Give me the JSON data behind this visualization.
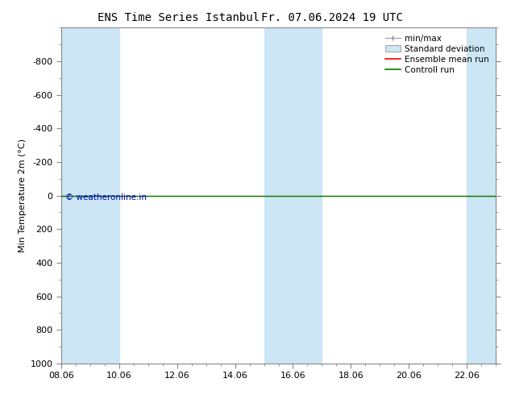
{
  "title_left": "ENS Time Series Istanbul",
  "title_right": "Fr. 07.06.2024 19 UTC",
  "ylabel": "Min Temperature 2m (°C)",
  "xlim_labels": [
    "08.06",
    "10.06",
    "12.06",
    "14.06",
    "16.06",
    "18.06",
    "20.06",
    "22.06"
  ],
  "xlim": [
    0,
    15.0
  ],
  "ylim_top": -1000,
  "ylim_bottom": 1000,
  "yticks": [
    -800,
    -600,
    -400,
    -200,
    0,
    200,
    400,
    600,
    800,
    1000
  ],
  "xtick_positions": [
    0,
    2,
    4,
    6,
    8,
    10,
    12,
    14
  ],
  "shaded_bands": [
    [
      0,
      1
    ],
    [
      1,
      2
    ],
    [
      7,
      8
    ],
    [
      8,
      9
    ],
    [
      14,
      15
    ]
  ],
  "flat_line_y": 0,
  "line_color_control": "#008000",
  "line_color_ensemble": "#ff0000",
  "watermark": "© weatheronline.in",
  "watermark_color": "#0000cc",
  "background_color": "#ffffff",
  "shaded_color": "#cce6f5",
  "legend_fontsize": 7.5,
  "axis_fontsize": 8,
  "ylabel_fontsize": 8,
  "title_fontsize": 10
}
